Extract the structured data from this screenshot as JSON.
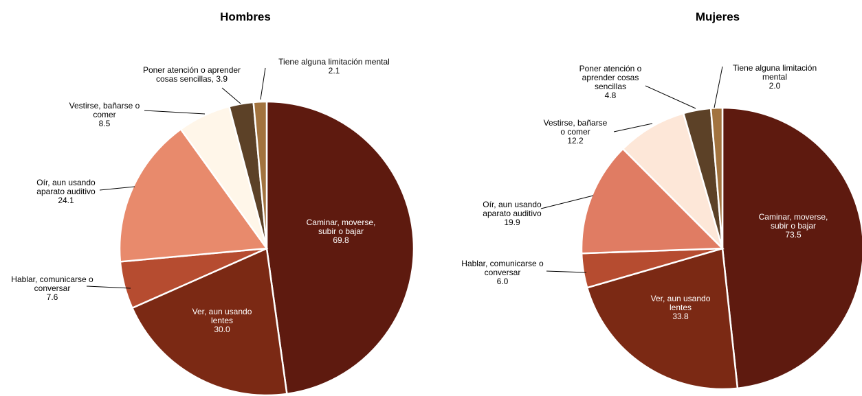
{
  "chart_data": [
    {
      "type": "pie",
      "title": "Hombres",
      "categories": [
        "Caminar, moverse, subir o bajar",
        "Ver, aun usando lentes",
        "Hablar, comunicarse o conversar",
        "Oír, aun usando aparato auditivo",
        "Vestirse, bañarse o comer",
        "Poner atención o aprender cosas sencillas",
        "Tiene alguna limitación mental"
      ],
      "values": [
        69.8,
        30.0,
        7.6,
        24.1,
        8.5,
        3.9,
        2.1
      ],
      "labels": [
        [
          "Caminar, moverse,",
          "subir o bajar",
          "69.8"
        ],
        [
          "Ver, aun usando",
          "lentes",
          "30.0"
        ],
        [
          "Hablar, comunicarse o",
          "conversar",
          "7.6"
        ],
        [
          "Oír, aun usando",
          "aparato auditivo",
          "24.1"
        ],
        [
          "Vestirse, bañarse o",
          "comer",
          "8.5"
        ],
        [
          "Poner atención o aprender",
          "cosas sencillas, 3.9"
        ],
        [
          "Tiene alguna limitación mental",
          "2.1"
        ]
      ],
      "colors": [
        "#5e1a0f",
        "#7b2914",
        "#b64c30",
        "#e88a6c",
        "#fff6e9",
        "#5c4127",
        "#a2733f"
      ]
    },
    {
      "type": "pie",
      "title": "Mujeres",
      "categories": [
        "Caminar, moverse, subir o bajar",
        "Ver, aun usando lentes",
        "Hablar, comunicarse o conversar",
        "Oír, aun usando aparato auditivo",
        "Vestirse, bañarse o comer",
        "Poner atención o aprender cosas sencillas",
        "Tiene alguna limitación mental"
      ],
      "values": [
        73.5,
        33.8,
        6.0,
        19.9,
        12.2,
        4.8,
        2.0
      ],
      "labels": [
        [
          "Caminar, moverse,",
          "subir o bajar",
          "73.5"
        ],
        [
          "Ver, aun usando",
          "lentes",
          "33.8"
        ],
        [
          "Hablar, comunicarse o",
          "conversar",
          "6.0"
        ],
        [
          "Oír, aun usando",
          "aparato auditivo",
          "19.9"
        ],
        [
          "Vestirse, bañarse",
          "o comer",
          "12.2"
        ],
        [
          "Poner atención o",
          "aprender cosas",
          "sencillas",
          "4.8"
        ],
        [
          "Tiene alguna limitación",
          "mental",
          "2.0"
        ]
      ],
      "colors": [
        "#5e1a0f",
        "#7b2914",
        "#b64c30",
        "#e07c63",
        "#fde7d8",
        "#5c4127",
        "#a2733f"
      ]
    }
  ]
}
